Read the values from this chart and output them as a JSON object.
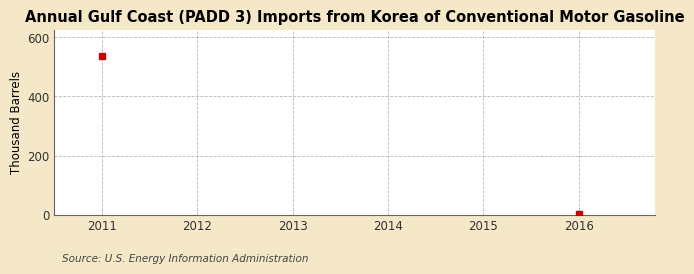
{
  "title": "Annual Gulf Coast (PADD 3) Imports from Korea of Conventional Motor Gasoline",
  "ylabel": "Thousand Barrels",
  "source": "Source: U.S. Energy Information Administration",
  "data_points_x": [
    2011,
    2016
  ],
  "data_points_y": [
    537,
    3
  ],
  "xlim": [
    2010.5,
    2016.8
  ],
  "ylim": [
    0,
    625
  ],
  "yticks": [
    0,
    200,
    400,
    600
  ],
  "xticks": [
    2011,
    2012,
    2013,
    2014,
    2015,
    2016
  ],
  "marker_color": "#cc0000",
  "marker_size": 4,
  "background_color": "#f5e8c8",
  "plot_bg_color": "#ffffff",
  "grid_color": "#999999",
  "title_fontsize": 10.5,
  "label_fontsize": 8.5,
  "tick_fontsize": 8.5,
  "source_fontsize": 7.5
}
